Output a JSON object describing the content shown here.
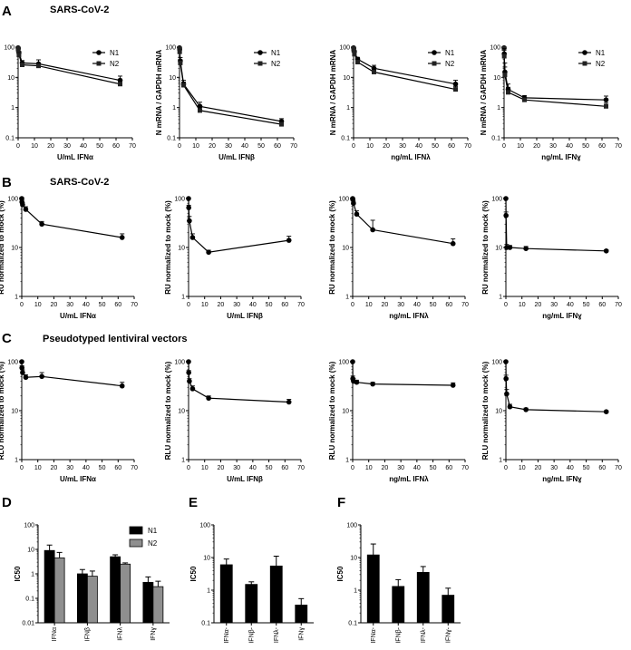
{
  "panels": {
    "A": {
      "letter": "A",
      "title": "SARS-CoV-2"
    },
    "B": {
      "letter": "B",
      "title": "SARS-CoV-2"
    },
    "C": {
      "letter": "C",
      "title": "Pseudotyped lentiviral vectors"
    },
    "D": {
      "letter": "D"
    },
    "E": {
      "letter": "E"
    },
    "F": {
      "letter": "F"
    }
  },
  "colors": {
    "n1": "#000000",
    "n2": "#8f8f8f",
    "line": "#000000"
  },
  "chart_data": [
    {
      "id": "A1",
      "type": "line",
      "xlabel": "U/mL IFNα",
      "ylabel": "N mRNA / GAPDH mRNA",
      "xlim": [
        0,
        70
      ],
      "yscale": "log",
      "ylim": [
        0.1,
        100
      ],
      "legend": "top-right",
      "series": [
        {
          "name": "N1",
          "marker": "circle",
          "x": [
            0,
            0.1,
            0.5,
            2.5,
            12.5,
            62.5
          ],
          "y": [
            95,
            90,
            65,
            30,
            28,
            8
          ],
          "err": [
            5,
            5,
            8,
            6,
            10,
            3
          ]
        },
        {
          "name": "N2",
          "marker": "square",
          "x": [
            0,
            0.1,
            0.5,
            2.5,
            12.5,
            62.5
          ],
          "y": [
            90,
            80,
            55,
            26,
            24,
            6
          ],
          "err": [
            5,
            5,
            8,
            5,
            6,
            2
          ]
        }
      ]
    },
    {
      "id": "A2",
      "type": "line",
      "xlabel": "U/mL IFNβ",
      "ylabel": "N mRNA / GAPDH mRNA",
      "xlim": [
        0,
        70
      ],
      "yscale": "log",
      "ylim": [
        0.1,
        100
      ],
      "legend": "top-right",
      "series": [
        {
          "name": "N1",
          "marker": "circle",
          "x": [
            0,
            0.1,
            0.5,
            2.5,
            12.5,
            62.5
          ],
          "y": [
            95,
            85,
            35,
            6,
            1.1,
            0.35
          ],
          "err": [
            5,
            10,
            10,
            2,
            0.4,
            0.08
          ]
        },
        {
          "name": "N2",
          "marker": "square",
          "x": [
            0,
            0.1,
            0.5,
            2.5,
            12.5,
            62.5
          ],
          "y": [
            90,
            70,
            30,
            5.5,
            0.8,
            0.28
          ],
          "err": [
            5,
            10,
            8,
            1.5,
            0.2,
            0.05
          ]
        }
      ]
    },
    {
      "id": "A3",
      "type": "line",
      "xlabel": "ng/mL IFNλ",
      "ylabel": "N mRNA / GAPDH mRNA",
      "xlim": [
        0,
        70
      ],
      "yscale": "log",
      "ylim": [
        0.1,
        100
      ],
      "legend": "top-right",
      "series": [
        {
          "name": "N1",
          "marker": "circle",
          "x": [
            0,
            0.1,
            0.5,
            2.5,
            12.5,
            62.5
          ],
          "y": [
            95,
            90,
            70,
            40,
            20,
            6
          ],
          "err": [
            5,
            5,
            8,
            6,
            5,
            2
          ]
        },
        {
          "name": "N2",
          "marker": "square",
          "x": [
            0,
            0.1,
            0.5,
            2.5,
            12.5,
            62.5
          ],
          "y": [
            90,
            80,
            60,
            32,
            15,
            4
          ],
          "err": [
            5,
            5,
            8,
            5,
            4,
            1
          ]
        }
      ]
    },
    {
      "id": "A4",
      "type": "line",
      "xlabel": "ng/mL IFNɣ",
      "ylabel": "N mRNA / GAPDH mRNA",
      "xlim": [
        0,
        70
      ],
      "yscale": "log",
      "ylim": [
        0.1,
        100
      ],
      "legend": "top-right",
      "series": [
        {
          "name": "N1",
          "marker": "circle",
          "x": [
            0,
            0.1,
            0.5,
            2.5,
            12.5,
            62.5
          ],
          "y": [
            95,
            60,
            15,
            4,
            2.1,
            1.8
          ],
          "err": [
            5,
            40,
            15,
            2,
            0.4,
            0.6
          ]
        },
        {
          "name": "N2",
          "marker": "square",
          "x": [
            0,
            0.1,
            0.5,
            2.5,
            12.5,
            62.5
          ],
          "y": [
            90,
            50,
            12,
            3.2,
            1.8,
            1.1
          ],
          "err": [
            5,
            40,
            10,
            1.5,
            0.3,
            0.3
          ]
        }
      ]
    },
    {
      "id": "B1",
      "type": "line",
      "xlabel": "U/mL IFNα",
      "ylabel": "RU normalized to mock (%)",
      "xlim": [
        0,
        70
      ],
      "yscale": "log",
      "ylim": [
        1,
        100
      ],
      "series": [
        {
          "marker": "circle",
          "x": [
            0,
            0.1,
            0.5,
            2.5,
            12.5,
            62.5
          ],
          "y": [
            100,
            85,
            75,
            60,
            30,
            16
          ],
          "err": [
            5,
            8,
            8,
            8,
            4,
            3
          ]
        }
      ]
    },
    {
      "id": "B2",
      "type": "line",
      "xlabel": "U/mL IFNβ",
      "ylabel": "RU normalized to mock (%)",
      "xlim": [
        0,
        70
      ],
      "yscale": "log",
      "ylim": [
        1,
        100
      ],
      "series": [
        {
          "marker": "circle",
          "x": [
            0,
            0.1,
            0.5,
            2.5,
            12.5,
            62.5
          ],
          "y": [
            100,
            65,
            35,
            16,
            8,
            14
          ],
          "err": [
            3,
            8,
            8,
            3,
            0.8,
            3
          ]
        }
      ]
    },
    {
      "id": "B3",
      "type": "line",
      "xlabel": "ng/mL IFNλ",
      "ylabel": "RU normalized to mock (%)",
      "xlim": [
        0,
        70
      ],
      "yscale": "log",
      "ylim": [
        1,
        100
      ],
      "series": [
        {
          "marker": "circle",
          "x": [
            0,
            0.1,
            0.5,
            2.5,
            12.5,
            62.5
          ],
          "y": [
            100,
            95,
            80,
            48,
            23,
            12
          ],
          "err": [
            3,
            5,
            8,
            8,
            13,
            3
          ]
        }
      ]
    },
    {
      "id": "B4",
      "type": "line",
      "xlabel": "ng/mL IFNɣ",
      "ylabel": "RU normalized to mock (%)",
      "xlim": [
        0,
        70
      ],
      "yscale": "log",
      "ylim": [
        1,
        100
      ],
      "series": [
        {
          "marker": "circle",
          "x": [
            0,
            0.1,
            0.5,
            2.5,
            12.5,
            62.5
          ],
          "y": [
            100,
            45,
            10,
            10,
            9.5,
            8.5
          ],
          "err": [
            3,
            8,
            1.5,
            1,
            1,
            0.5
          ]
        }
      ]
    },
    {
      "id": "C1",
      "type": "line",
      "xlabel": "U/mL IFNα",
      "ylabel": "RLU normalized to mock (%)",
      "xlim": [
        0,
        70
      ],
      "yscale": "log",
      "ylim": [
        1,
        100
      ],
      "series": [
        {
          "marker": "circle",
          "x": [
            0,
            0.1,
            0.5,
            2.5,
            12.5,
            62.5
          ],
          "y": [
            100,
            75,
            60,
            48,
            50,
            32
          ],
          "err": [
            3,
            8,
            8,
            6,
            10,
            6
          ]
        }
      ]
    },
    {
      "id": "C2",
      "type": "line",
      "xlabel": "U/mL IFNβ",
      "ylabel": "RLU normalized to mock (%)",
      "xlim": [
        0,
        70
      ],
      "yscale": "log",
      "ylim": [
        1,
        100
      ],
      "series": [
        {
          "marker": "circle",
          "x": [
            0,
            0.1,
            0.5,
            2.5,
            12.5,
            62.5
          ],
          "y": [
            100,
            60,
            40,
            28,
            18,
            15
          ],
          "err": [
            3,
            6,
            5,
            4,
            2,
            2
          ]
        }
      ]
    },
    {
      "id": "C3",
      "type": "line",
      "xlabel": "ng/mL IFNλ",
      "ylabel": "RLU normalized to mock (%)",
      "xlim": [
        0,
        70
      ],
      "yscale": "log",
      "ylim": [
        1,
        100
      ],
      "series": [
        {
          "marker": "circle",
          "x": [
            0,
            0.1,
            0.5,
            2.5,
            12.5,
            62.5
          ],
          "y": [
            100,
            45,
            40,
            38,
            35,
            33
          ],
          "err": [
            3,
            6,
            5,
            4,
            3,
            4
          ]
        }
      ]
    },
    {
      "id": "C4",
      "type": "line",
      "xlabel": "ng/mL IFNɣ",
      "ylabel": "RLU normalized to mock (%)",
      "xlim": [
        0,
        70
      ],
      "yscale": "log",
      "ylim": [
        1,
        100
      ],
      "series": [
        {
          "marker": "circle",
          "x": [
            0,
            0.1,
            0.5,
            2.5,
            12.5,
            62.5
          ],
          "y": [
            100,
            45,
            22,
            12,
            10.5,
            9.5
          ],
          "err": [
            3,
            8,
            5,
            1.5,
            0.8,
            0.5
          ]
        }
      ]
    },
    {
      "id": "D",
      "type": "bar",
      "ylabel": "IC50",
      "yscale": "log",
      "ylim": [
        0.01,
        100
      ],
      "legend": "top-right",
      "categories": [
        "IFNα",
        "IFNβ",
        "IFNλ",
        "IFNɣ"
      ],
      "series": [
        {
          "name": "N1",
          "values": [
            9,
            1,
            5,
            0.45
          ],
          "err": [
            6,
            0.5,
            1,
            0.3
          ]
        },
        {
          "name": "N2",
          "values": [
            4.5,
            0.8,
            2.5,
            0.3
          ],
          "err": [
            3,
            0.5,
            0.3,
            0.2
          ]
        }
      ]
    },
    {
      "id": "E",
      "type": "bar",
      "ylabel": "IC50",
      "yscale": "log",
      "ylim": [
        0.1,
        100
      ],
      "categories": [
        "IFNα-",
        "IFNβ-",
        "IFNλ-",
        "IFNɣ"
      ],
      "series": [
        {
          "values": [
            6,
            1.5,
            5.5,
            0.35
          ],
          "err": [
            3,
            0.3,
            5.5,
            0.2
          ]
        }
      ]
    },
    {
      "id": "F",
      "type": "bar",
      "ylabel": "IC50",
      "yscale": "log",
      "ylim": [
        0.1,
        100
      ],
      "categories": [
        "IFNα-",
        "IFNβ-",
        "IFNλ-",
        "IFNɣ-"
      ],
      "series": [
        {
          "values": [
            12,
            1.3,
            3.5,
            0.7
          ],
          "err": [
            14,
            0.8,
            1.8,
            0.45
          ]
        }
      ]
    }
  ]
}
